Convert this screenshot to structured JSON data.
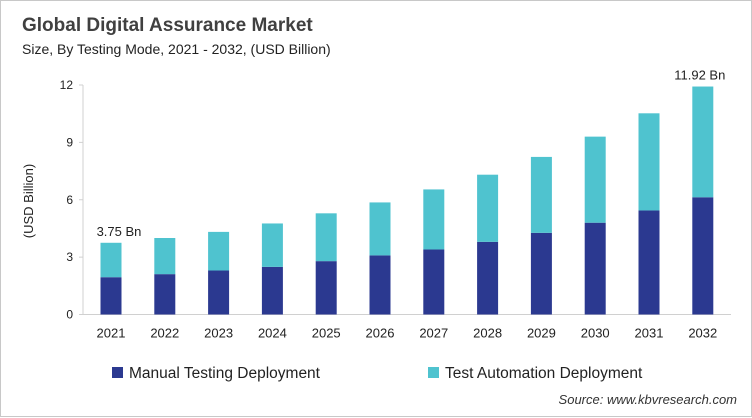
{
  "chart_data": {
    "type": "bar",
    "stacked": true,
    "title": "Global Digital Assurance Market",
    "subtitle": "Size, By Testing Mode, 2021 - 2032, (USD Billion)",
    "xlabel": "",
    "ylabel": "(USD Billion)",
    "ylim": [
      0,
      12
    ],
    "yticks": [
      0,
      3,
      6,
      9,
      12
    ],
    "grid": false,
    "legend_position": "bottom",
    "categories": [
      "2021",
      "2022",
      "2023",
      "2024",
      "2025",
      "2026",
      "2027",
      "2028",
      "2029",
      "2030",
      "2031",
      "2032"
    ],
    "series": [
      {
        "name": "Manual Testing Deployment",
        "color": "#2b3990",
        "values": [
          1.95,
          2.11,
          2.3,
          2.49,
          2.79,
          3.09,
          3.4,
          3.8,
          4.27,
          4.8,
          5.44,
          6.13
        ]
      },
      {
        "name": "Test Automation Deployment",
        "color": "#4fc3cf",
        "values": [
          1.8,
          1.89,
          2.02,
          2.27,
          2.5,
          2.77,
          3.14,
          3.51,
          3.97,
          4.5,
          5.08,
          5.79
        ]
      }
    ],
    "annotations": [
      {
        "category": "2021",
        "text": "3.75 Bn"
      },
      {
        "category": "2032",
        "text": "11.92 Bn"
      }
    ],
    "source": "Source: www.kbvresearch.com"
  }
}
